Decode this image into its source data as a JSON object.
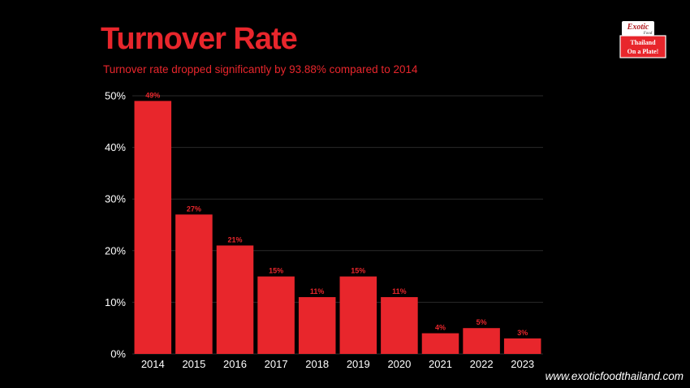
{
  "colors": {
    "accent": "#e8262c",
    "background": "#000000",
    "text": "#ffffff",
    "grid": "#2a2a2a"
  },
  "header": {
    "title": "Turnover Rate",
    "subtitle": "Turnover rate dropped significantly by 93.88% compared to 2014"
  },
  "logo": {
    "icon": "exotic-food-logo-icon",
    "line1": "Exotic",
    "line2": "Food",
    "line3": "Thailand",
    "line4": "On a Plate!"
  },
  "footer": {
    "url": "www.exoticfoodthailand.com"
  },
  "chart_data": {
    "type": "bar",
    "title": "Turnover Rate",
    "categories": [
      "2014",
      "2015",
      "2016",
      "2017",
      "2018",
      "2019",
      "2020",
      "2021",
      "2022",
      "2023"
    ],
    "values": [
      49,
      27,
      21,
      15,
      11,
      15,
      11,
      4,
      5,
      3
    ],
    "data_labels": [
      "49%",
      "27%",
      "21%",
      "15%",
      "11%",
      "15%",
      "11%",
      "4%",
      "5%",
      "3%"
    ],
    "yticks": [
      "0%",
      "10%",
      "20%",
      "30%",
      "40%",
      "50%"
    ],
    "ytick_values": [
      0,
      10,
      20,
      30,
      40,
      50
    ],
    "xlabel": "",
    "ylabel": "",
    "ylim": [
      0,
      50
    ],
    "grid": true,
    "legend": "none"
  }
}
